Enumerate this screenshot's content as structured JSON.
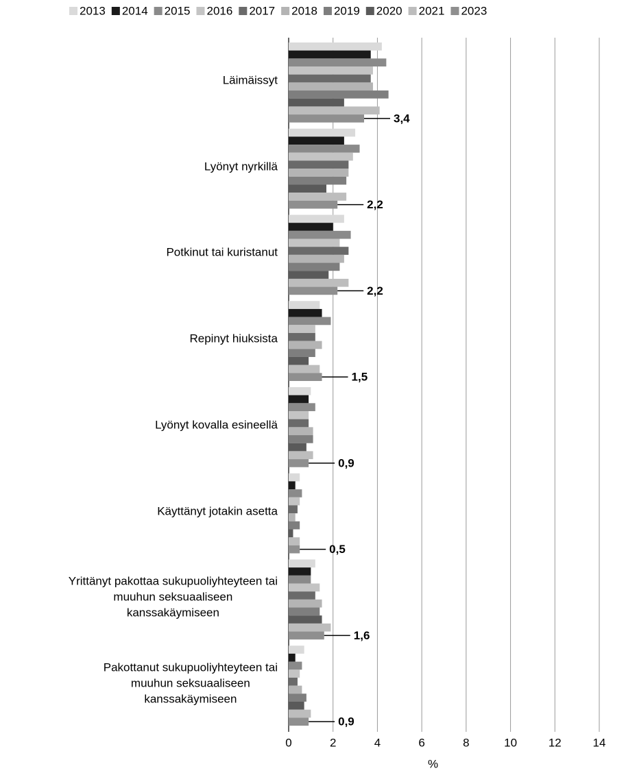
{
  "chart_data": {
    "type": "hbar",
    "categories": [
      "Läimäissyt",
      "Lyönyt nyrkillä",
      "Potkinut tai kuristanut",
      "Repinyt hiuksista",
      "Lyönyt kovalla esineellä",
      "Käyttänyt jotakin asetta",
      "Yrittänyt pakottaa sukupuoliyhteyteen tai\nmuuhun seksuaaliseen\nkanssakäymiseen",
      "Pakottanut sukupuoliyhteyteen tai\nmuuhun seksuaaliseen\nkanssakäymiseen"
    ],
    "series": [
      {
        "name": "2013",
        "color": "#dadada",
        "values": [
          4.2,
          3.0,
          2.5,
          1.4,
          1.0,
          0.5,
          1.2,
          0.7
        ]
      },
      {
        "name": "2014",
        "color": "#1a1a1a",
        "values": [
          3.7,
          2.5,
          2.0,
          1.5,
          0.9,
          0.3,
          1.0,
          0.3
        ]
      },
      {
        "name": "2015",
        "color": "#8a8a8a",
        "values": [
          4.4,
          3.2,
          2.8,
          1.9,
          1.2,
          0.6,
          1.0,
          0.6
        ]
      },
      {
        "name": "2016",
        "color": "#c4c4c4",
        "values": [
          3.8,
          2.9,
          2.3,
          1.2,
          0.9,
          0.5,
          1.4,
          0.5
        ]
      },
      {
        "name": "2017",
        "color": "#6a6a6a",
        "values": [
          3.7,
          2.7,
          2.7,
          1.2,
          0.9,
          0.4,
          1.2,
          0.4
        ]
      },
      {
        "name": "2018",
        "color": "#b4b4b4",
        "values": [
          3.8,
          2.7,
          2.5,
          1.5,
          1.1,
          0.3,
          1.5,
          0.6
        ]
      },
      {
        "name": "2019",
        "color": "#7e7e7e",
        "values": [
          4.5,
          2.6,
          2.3,
          1.2,
          1.1,
          0.5,
          1.4,
          0.8
        ]
      },
      {
        "name": "2020",
        "color": "#5a5a5a",
        "values": [
          2.5,
          1.7,
          1.8,
          0.9,
          0.8,
          0.2,
          1.5,
          0.7
        ]
      },
      {
        "name": "2021",
        "color": "#bdbdbd",
        "values": [
          4.1,
          2.6,
          2.7,
          1.4,
          1.1,
          0.5,
          1.9,
          1.0
        ]
      },
      {
        "name": "2023",
        "color": "#8f8f8f",
        "values": [
          3.4,
          2.2,
          2.2,
          1.5,
          0.9,
          0.5,
          1.6,
          0.9
        ],
        "value_labels": [
          "3,4",
          "2,2",
          "2,2",
          "1,5",
          "0,9",
          "0,5",
          "1,6",
          "0,9"
        ]
      }
    ],
    "x_label": "%",
    "xlim": [
      0,
      14
    ],
    "xticks": [
      0,
      2,
      4,
      6,
      8,
      10,
      12,
      14
    ],
    "grid": true,
    "legend": "top"
  }
}
